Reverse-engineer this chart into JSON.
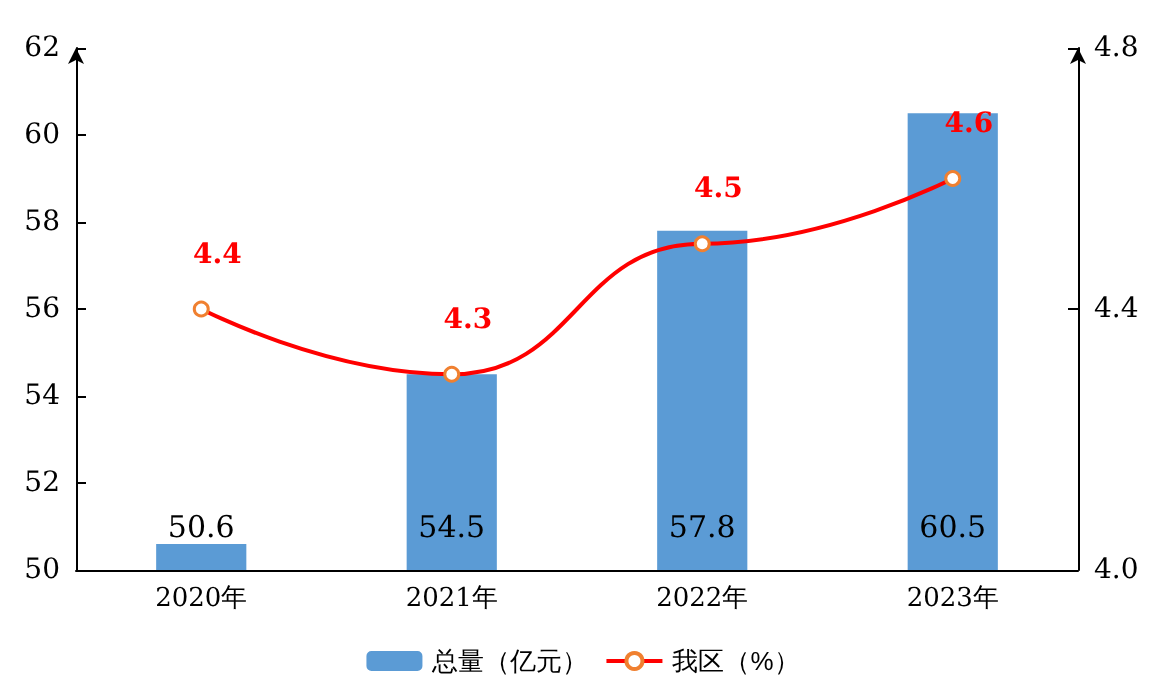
{
  "chart_data": {
    "type": "bar",
    "categories": [
      "2020年",
      "2021年",
      "2022年",
      "2023年"
    ],
    "series": [
      {
        "name": "总量（亿元）",
        "color": "#5b9bd5",
        "values": [
          50.6,
          54.5,
          57.8,
          60.5
        ]
      },
      {
        "name": "我区（%）",
        "type": "line",
        "axis": "y2",
        "color": "#ff0000",
        "values": [
          4.4,
          4.3,
          4.5,
          4.6
        ],
        "marker": "circle"
      }
    ],
    "ylim": [
      50,
      62
    ],
    "yticks": [
      50,
      52,
      54,
      56,
      58,
      60,
      62
    ],
    "y2lim": [
      4.0,
      4.8
    ],
    "y2ticks": [
      {
        "value": 4,
        "label": "4.0"
      },
      4.4,
      4.8
    ],
    "data_labels": true,
    "grid": false,
    "legend": "bottom"
  }
}
